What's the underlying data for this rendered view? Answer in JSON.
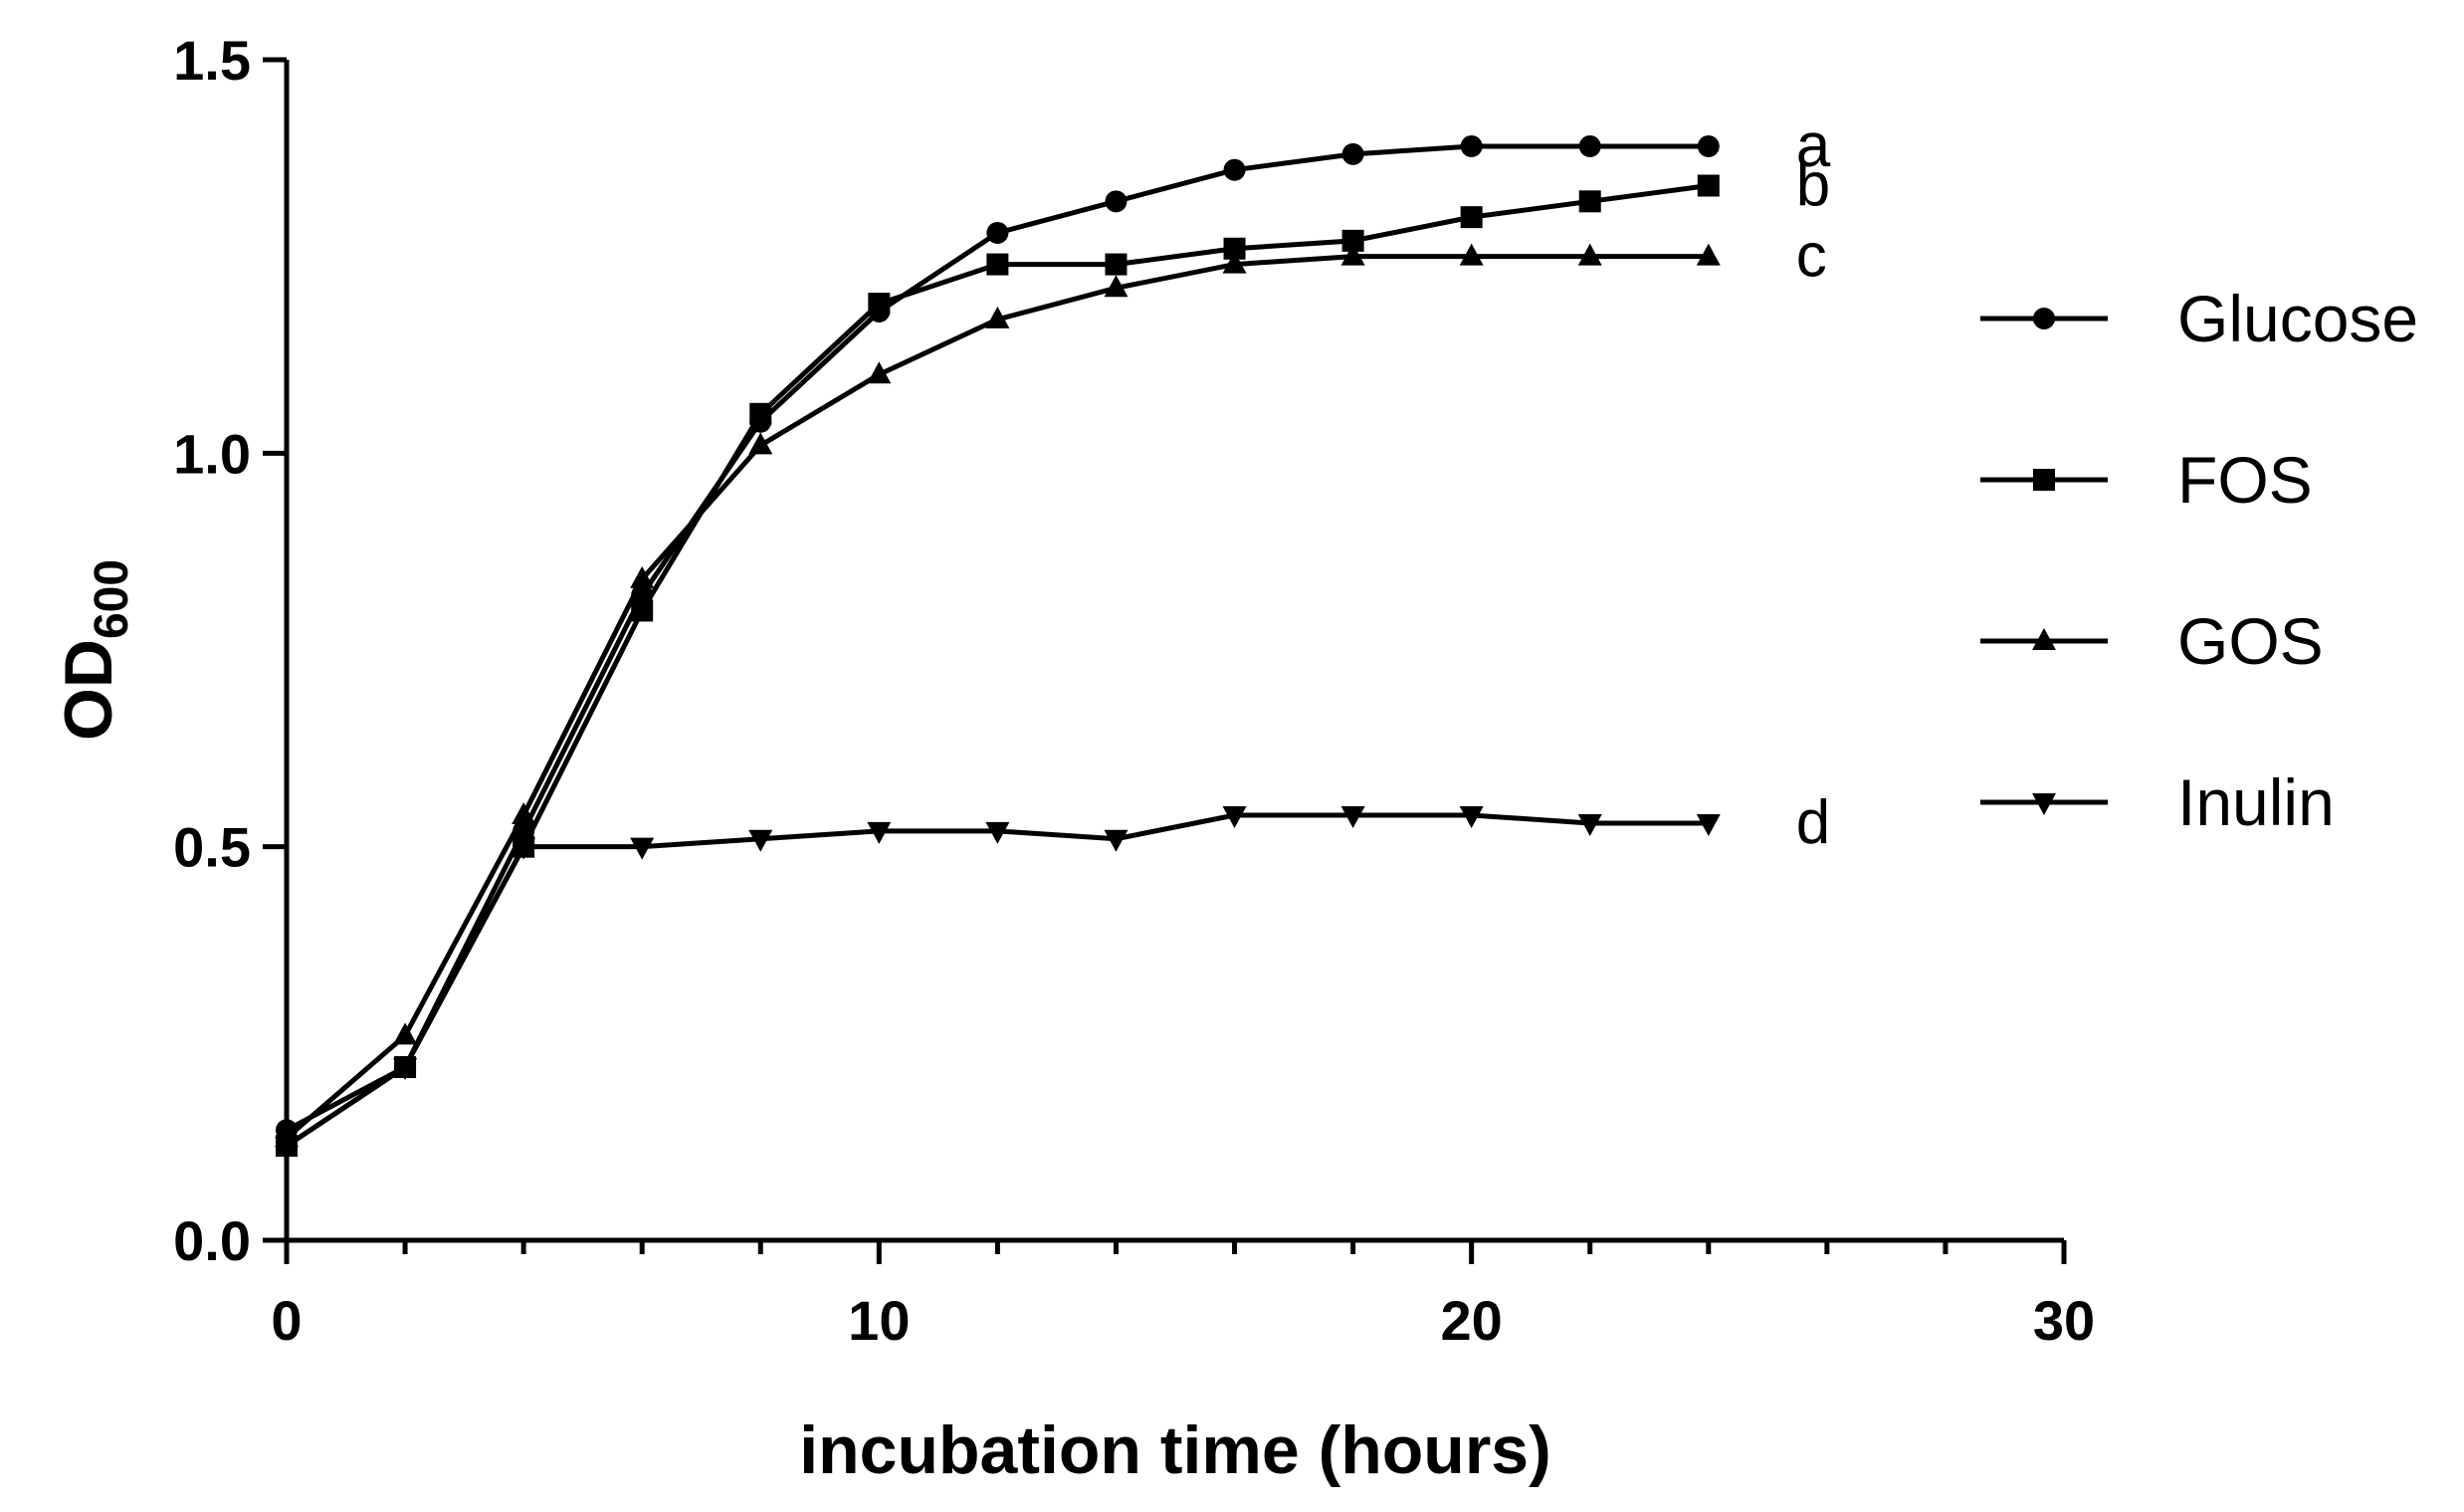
{
  "chart_data": {
    "type": "line",
    "title": "",
    "xlabel": "incubation time (hours)",
    "ylabel_main": "OD",
    "ylabel_sub": "600",
    "xlim": [
      0,
      30
    ],
    "ylim": [
      0,
      1.5
    ],
    "x_ticks": [
      "0",
      "10",
      "20",
      "30"
    ],
    "y_ticks": [
      "0.0",
      "0.5",
      "1.0",
      "1.5"
    ],
    "x_tick_values": [
      0,
      10,
      20,
      30
    ],
    "x_minor_tick_values": [
      2,
      4,
      6,
      8,
      12,
      14,
      16,
      18,
      22,
      24,
      26,
      28
    ],
    "y_tick_values": [
      0,
      0.5,
      1.0,
      1.5
    ],
    "x": [
      0,
      2,
      4,
      6,
      8,
      10,
      12,
      14,
      16,
      18,
      20,
      22,
      24
    ],
    "legend_position": "right",
    "series": [
      {
        "name": "Glucose",
        "marker": "circle",
        "sig": "a",
        "values": [
          0.14,
          0.22,
          0.52,
          0.82,
          1.04,
          1.18,
          1.28,
          1.32,
          1.36,
          1.38,
          1.39,
          1.39,
          1.39
        ]
      },
      {
        "name": "FOS",
        "marker": "square",
        "sig": "b",
        "values": [
          0.12,
          0.22,
          0.5,
          0.8,
          1.05,
          1.19,
          1.24,
          1.24,
          1.26,
          1.27,
          1.3,
          1.32,
          1.34
        ]
      },
      {
        "name": "GOS",
        "marker": "triangle-up",
        "sig": "c",
        "values": [
          0.13,
          0.26,
          0.54,
          0.84,
          1.01,
          1.1,
          1.17,
          1.21,
          1.24,
          1.25,
          1.25,
          1.25,
          1.25
        ]
      },
      {
        "name": "Inulin",
        "marker": "triangle-down",
        "sig": "d",
        "values": [
          0.12,
          0.22,
          0.5,
          0.5,
          0.51,
          0.52,
          0.52,
          0.51,
          0.54,
          0.54,
          0.54,
          0.53,
          0.53
        ]
      }
    ]
  }
}
